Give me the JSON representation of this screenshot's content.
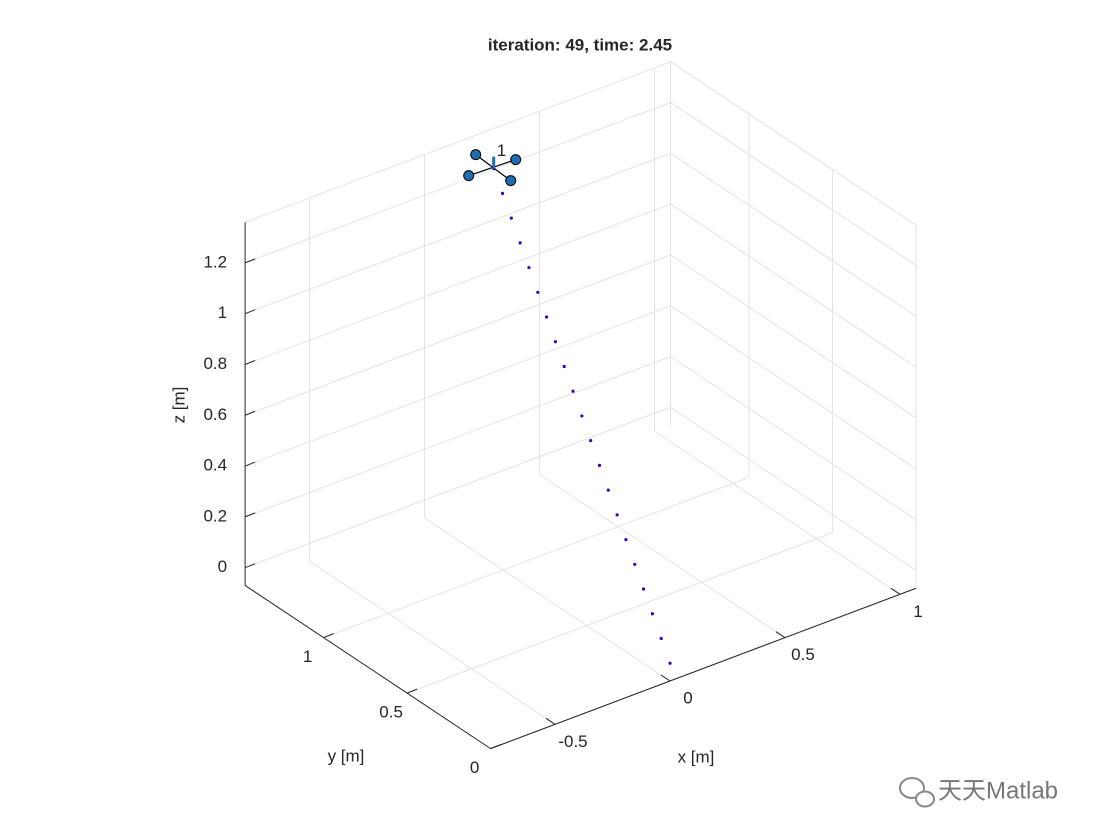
{
  "chart_data": {
    "type": "line3d",
    "title": "iteration: 49, time: 2.45",
    "xlabel": "x [m]",
    "ylabel": "y [m]",
    "zlabel": "z [m]",
    "xlim": [
      -0.78,
      1.07
    ],
    "ylim": [
      0,
      1.47
    ],
    "zlim": [
      -0.07,
      1.36
    ],
    "xticks": [
      -0.5,
      0,
      0.5,
      1
    ],
    "yticks": [
      0,
      0.5,
      1
    ],
    "zticks": [
      0,
      0.2,
      0.4,
      0.6,
      0.8,
      1,
      1.2
    ],
    "grid": true,
    "series": [
      {
        "color": "#3b00c8",
        "x": [
          0,
          0.0125,
          0.025,
          0.0375,
          0.05,
          0.0625,
          0.075,
          0.0875,
          0.1,
          0.1125,
          0.125,
          0.1375,
          0.15,
          0.1625,
          0.175,
          0.1875,
          0.2,
          0.2125,
          0.225,
          0.2375,
          0.25
        ],
        "y": [
          0,
          0.07,
          0.14,
          0.21,
          0.28,
          0.35,
          0.42,
          0.49,
          0.56,
          0.63,
          0.7,
          0.77,
          0.84,
          0.91,
          0.98,
          1.05,
          1.12,
          1.19,
          1.26,
          1.33,
          1.4
        ],
        "z": [
          0,
          0.0625,
          0.125,
          0.1875,
          0.25,
          0.3125,
          0.375,
          0.4375,
          0.5,
          0.5625,
          0.625,
          0.6875,
          0.75,
          0.8125,
          0.875,
          0.9375,
          1,
          1.0625,
          1.125,
          1.1875,
          1.25
        ]
      }
    ],
    "vehicle_label": "1"
  },
  "watermark": "天天Matlab"
}
